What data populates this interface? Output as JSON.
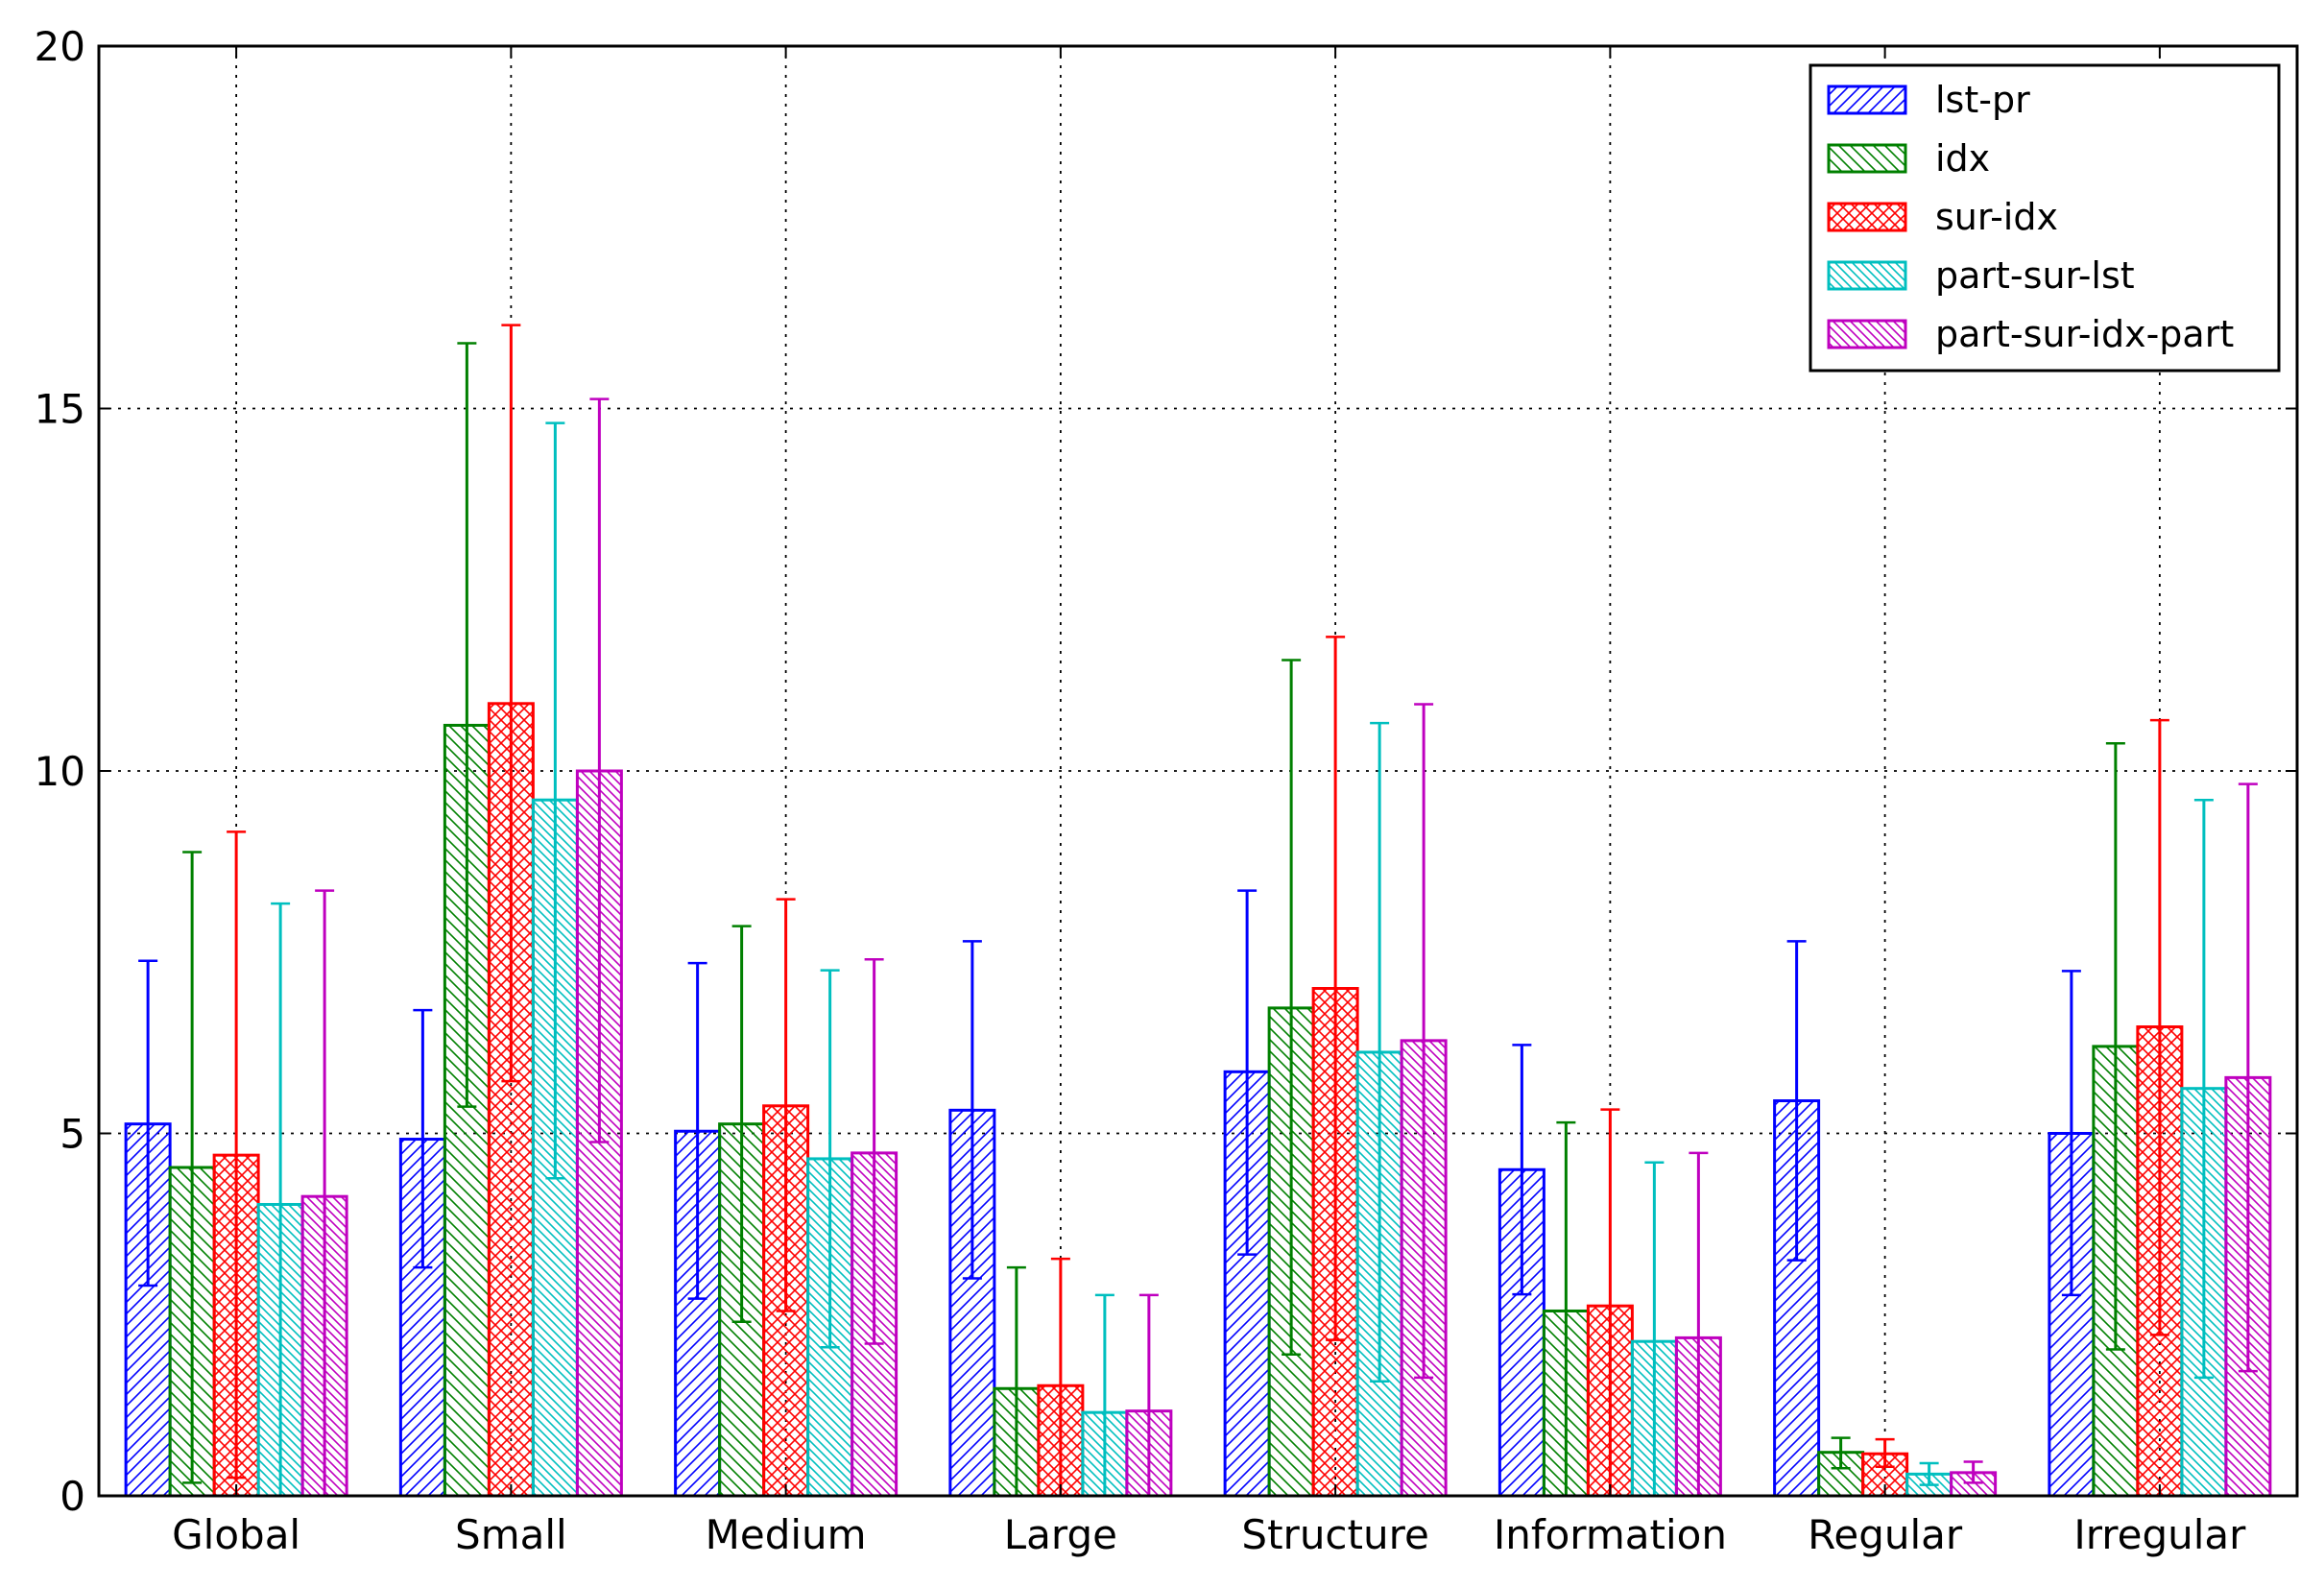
{
  "chart_data": {
    "type": "bar",
    "title": "",
    "xlabel": "",
    "ylabel": "",
    "ylim": [
      0,
      20
    ],
    "yticks": [
      0,
      5,
      10,
      15,
      20
    ],
    "grid": true,
    "legend_position": "top-right",
    "categories": [
      "Global",
      "Small",
      "Medium",
      "Large",
      "Structure",
      "Information",
      "Regular",
      "Irregular"
    ],
    "series": [
      {
        "name": "lst-pr",
        "color": "#0000ff",
        "hatch": "diag-fwd",
        "values": [
          5.13,
          4.92,
          5.03,
          5.32,
          5.85,
          4.5,
          5.45,
          5.0
        ],
        "err_low": [
          2.9,
          3.15,
          2.72,
          3.0,
          3.33,
          2.78,
          3.25,
          2.77
        ],
        "err_high": [
          7.38,
          6.7,
          7.35,
          7.65,
          8.35,
          6.22,
          7.65,
          7.24
        ]
      },
      {
        "name": "idx",
        "color": "#008000",
        "hatch": "diag-back",
        "values": [
          4.53,
          10.63,
          5.13,
          1.48,
          6.73,
          2.55,
          0.6,
          6.2
        ],
        "err_low": [
          0.18,
          5.37,
          2.4,
          0.0,
          1.95,
          0.0,
          0.38,
          2.02
        ],
        "err_high": [
          8.88,
          15.9,
          7.86,
          3.15,
          11.53,
          5.15,
          0.8,
          10.38
        ]
      },
      {
        "name": "sur-idx",
        "color": "#ff0000",
        "hatch": "cross",
        "values": [
          4.7,
          10.93,
          5.38,
          1.52,
          7.0,
          2.62,
          0.58,
          6.47
        ],
        "err_low": [
          0.25,
          5.72,
          2.55,
          0.0,
          2.15,
          0.0,
          0.4,
          2.22
        ],
        "err_high": [
          9.16,
          16.15,
          8.23,
          3.27,
          11.85,
          5.33,
          0.78,
          10.7
        ]
      },
      {
        "name": "part-sur-lst",
        "color": "#00bfbf",
        "hatch": "diag-back-dense",
        "values": [
          4.02,
          9.6,
          4.65,
          1.15,
          6.12,
          2.13,
          0.3,
          5.62
        ],
        "err_low": [
          0.0,
          4.38,
          2.05,
          0.0,
          1.58,
          0.0,
          0.15,
          1.63
        ],
        "err_high": [
          8.17,
          14.8,
          7.25,
          2.77,
          10.66,
          4.6,
          0.45,
          9.6
        ]
      },
      {
        "name": "part-sur-idx-part",
        "color": "#bf00bf",
        "hatch": "diag-back-dense",
        "values": [
          4.13,
          10.0,
          4.73,
          1.17,
          6.28,
          2.18,
          0.32,
          5.77
        ],
        "err_low": [
          0.0,
          4.88,
          2.1,
          0.0,
          1.63,
          0.0,
          0.18,
          1.72
        ],
        "err_high": [
          8.35,
          15.13,
          7.4,
          2.77,
          10.92,
          4.73,
          0.47,
          9.82
        ]
      }
    ]
  }
}
